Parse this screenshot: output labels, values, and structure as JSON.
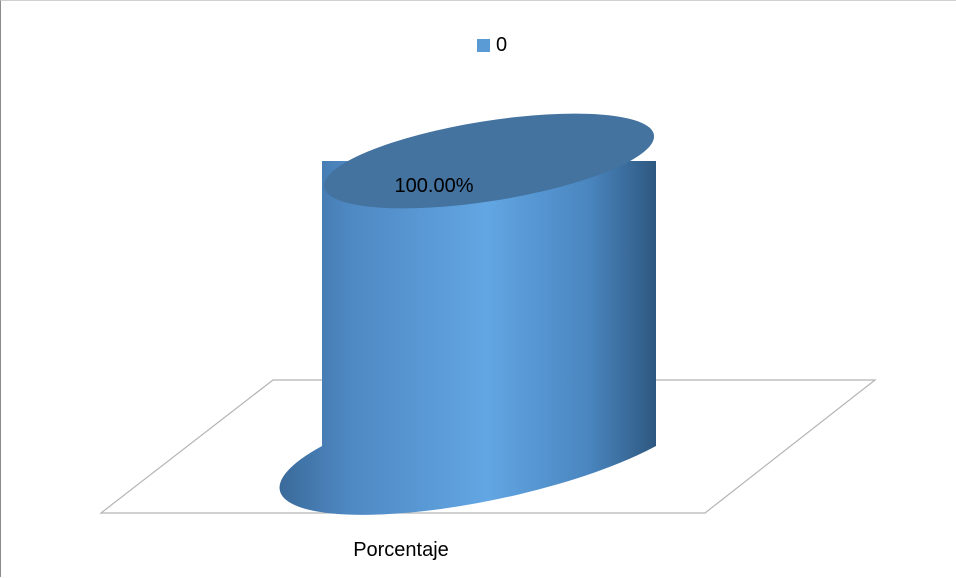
{
  "chart_data": {
    "type": "bar",
    "categories": [
      "Porcentaje"
    ],
    "series": [
      {
        "name": "0",
        "values": [
          1.0
        ],
        "labels": [
          "100.00%"
        ],
        "color": "#5b9bd5"
      }
    ],
    "ylim": [
      0,
      1
    ],
    "grid": false,
    "legend": "top",
    "style": "3d-cylinder"
  }
}
